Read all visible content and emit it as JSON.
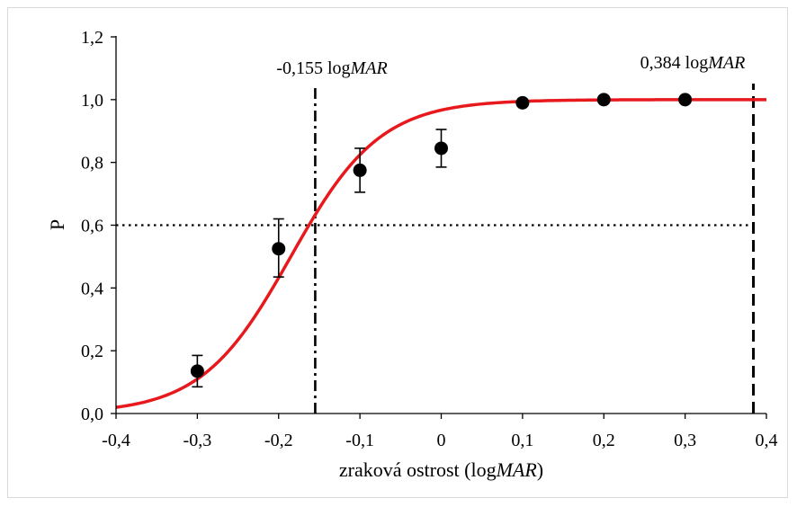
{
  "colors": {
    "fit_curve": "#e8191c",
    "points": "#000000",
    "axis": "#000000",
    "frame": "#d9d9d9"
  },
  "chart_data": {
    "type": "scatter",
    "xlabel_prefix": "zraková ostrost (log",
    "xlabel_italic": "MAR",
    "xlabel_suffix": ")",
    "ylabel": "P",
    "xlim": [
      -0.4,
      0.4
    ],
    "ylim": [
      0.0,
      1.2
    ],
    "x_ticks": [
      -0.4,
      -0.3,
      -0.2,
      -0.1,
      0.0,
      0.1,
      0.2,
      0.3,
      0.4
    ],
    "x_tick_labels": [
      "-0,4",
      "-0,3",
      "-0,2",
      "-0,1",
      "0",
      "0,1",
      "0,2",
      "0,3",
      "0,4"
    ],
    "y_ticks": [
      0.0,
      0.2,
      0.4,
      0.6,
      0.8,
      1.0,
      1.2
    ],
    "y_tick_labels": [
      "0,0",
      "0,2",
      "0,4",
      "0,6",
      "0,8",
      "1,0",
      "1,2"
    ],
    "grid": false,
    "points": [
      {
        "x": -0.3,
        "y": 0.135,
        "err_low": 0.085,
        "err_high": 0.185
      },
      {
        "x": -0.2,
        "y": 0.525,
        "err_low": 0.435,
        "err_high": 0.62
      },
      {
        "x": -0.1,
        "y": 0.775,
        "err_low": 0.705,
        "err_high": 0.845
      },
      {
        "x": 0.0,
        "y": 0.845,
        "err_low": 0.785,
        "err_high": 0.905
      },
      {
        "x": 0.1,
        "y": 0.99
      },
      {
        "x": 0.2,
        "y": 1.0
      },
      {
        "x": 0.3,
        "y": 1.0
      }
    ],
    "fit_curve": {
      "type": "logistic",
      "x_mid": -0.185,
      "scale": 0.055,
      "x_range": [
        -0.4,
        0.4
      ]
    },
    "reference_lines": {
      "horizontal_p": 0.6,
      "vertical_left_x": -0.155,
      "vertical_right_x": 0.384
    },
    "annotations": [
      {
        "value": "-0,155 log",
        "italic_part": "MAR",
        "x": -0.155
      },
      {
        "value": "0,384 log",
        "italic_part": "MAR",
        "x": 0.384
      }
    ]
  }
}
